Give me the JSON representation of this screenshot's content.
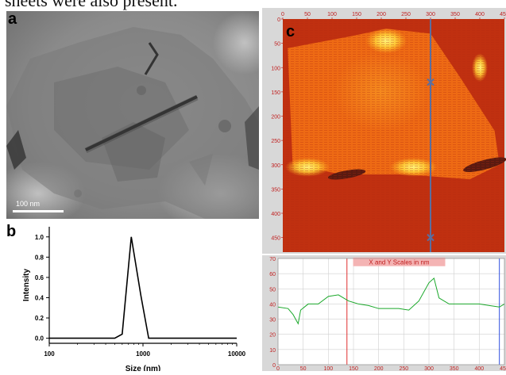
{
  "caption_fragment": "sheets were also present.",
  "panels": {
    "a": {
      "letter": "a",
      "scale_bar_label": "100 nm"
    },
    "b": {
      "letter": "b"
    },
    "c": {
      "letter": "c"
    }
  },
  "chart_data": [
    {
      "type": "line",
      "panel": "b",
      "xlabel": "Size (nm)",
      "ylabel": "Intensity",
      "x_scale": "log",
      "xlim": [
        100,
        10000
      ],
      "ylim": [
        -0.05,
        1.1
      ],
      "x_ticks": [
        "100",
        "1000",
        "10000"
      ],
      "y_ticks": [
        "0.0",
        "0.2",
        "0.4",
        "0.6",
        "0.8",
        "1.0"
      ],
      "x": [
        100,
        500,
        600,
        750,
        950,
        1150,
        10000
      ],
      "y": [
        0.0,
        0.0,
        0.04,
        1.0,
        0.42,
        0.0,
        0.0
      ],
      "line_color": "#000000"
    },
    {
      "type": "heatmap",
      "panel": "c",
      "xlim": [
        0,
        450
      ],
      "ylim": [
        0,
        480
      ],
      "x_ticks": [
        "0",
        "50",
        "100",
        "150",
        "200",
        "250",
        "300",
        "350",
        "400",
        "450"
      ],
      "y_ticks": [
        "0",
        "50",
        "100",
        "150",
        "200",
        "250",
        "300",
        "350",
        "400",
        "450"
      ],
      "cursor_x": 300,
      "markers": [
        {
          "x": 300,
          "y": 130
        },
        {
          "x": 300,
          "y": 450
        }
      ],
      "colors": {
        "low": "#c03010",
        "mid": "#ee6a14",
        "high": "#ffe84a",
        "cursor": "#5a6ea0"
      }
    },
    {
      "type": "line",
      "panel": "c-profile",
      "title": "X and Y Scales in nm",
      "xlim": [
        0,
        450
      ],
      "ylim": [
        0,
        70
      ],
      "x_ticks": [
        "0",
        "50",
        "100",
        "150",
        "200",
        "250",
        "300",
        "350",
        "400",
        "450"
      ],
      "y_ticks": [
        "0",
        "10",
        "20",
        "30",
        "40",
        "50",
        "60",
        "70"
      ],
      "x": [
        0,
        20,
        30,
        40,
        45,
        60,
        80,
        100,
        120,
        140,
        160,
        180,
        200,
        220,
        240,
        260,
        280,
        300,
        310,
        320,
        340,
        360,
        380,
        400,
        420,
        440,
        450
      ],
      "y": [
        38,
        37,
        33,
        27,
        36,
        40,
        40,
        45,
        46,
        42,
        40,
        39,
        37,
        37,
        37,
        36,
        42,
        54,
        57,
        44,
        40,
        40,
        40,
        40,
        39,
        38,
        40
      ],
      "markers_x": [
        137,
        440
      ],
      "colors": {
        "line": "#1aa82a",
        "marker_left": "#e03030",
        "marker_right": "#3050e0",
        "title_bg": "#f4b4b4",
        "title_text": "#c02020"
      }
    }
  ]
}
